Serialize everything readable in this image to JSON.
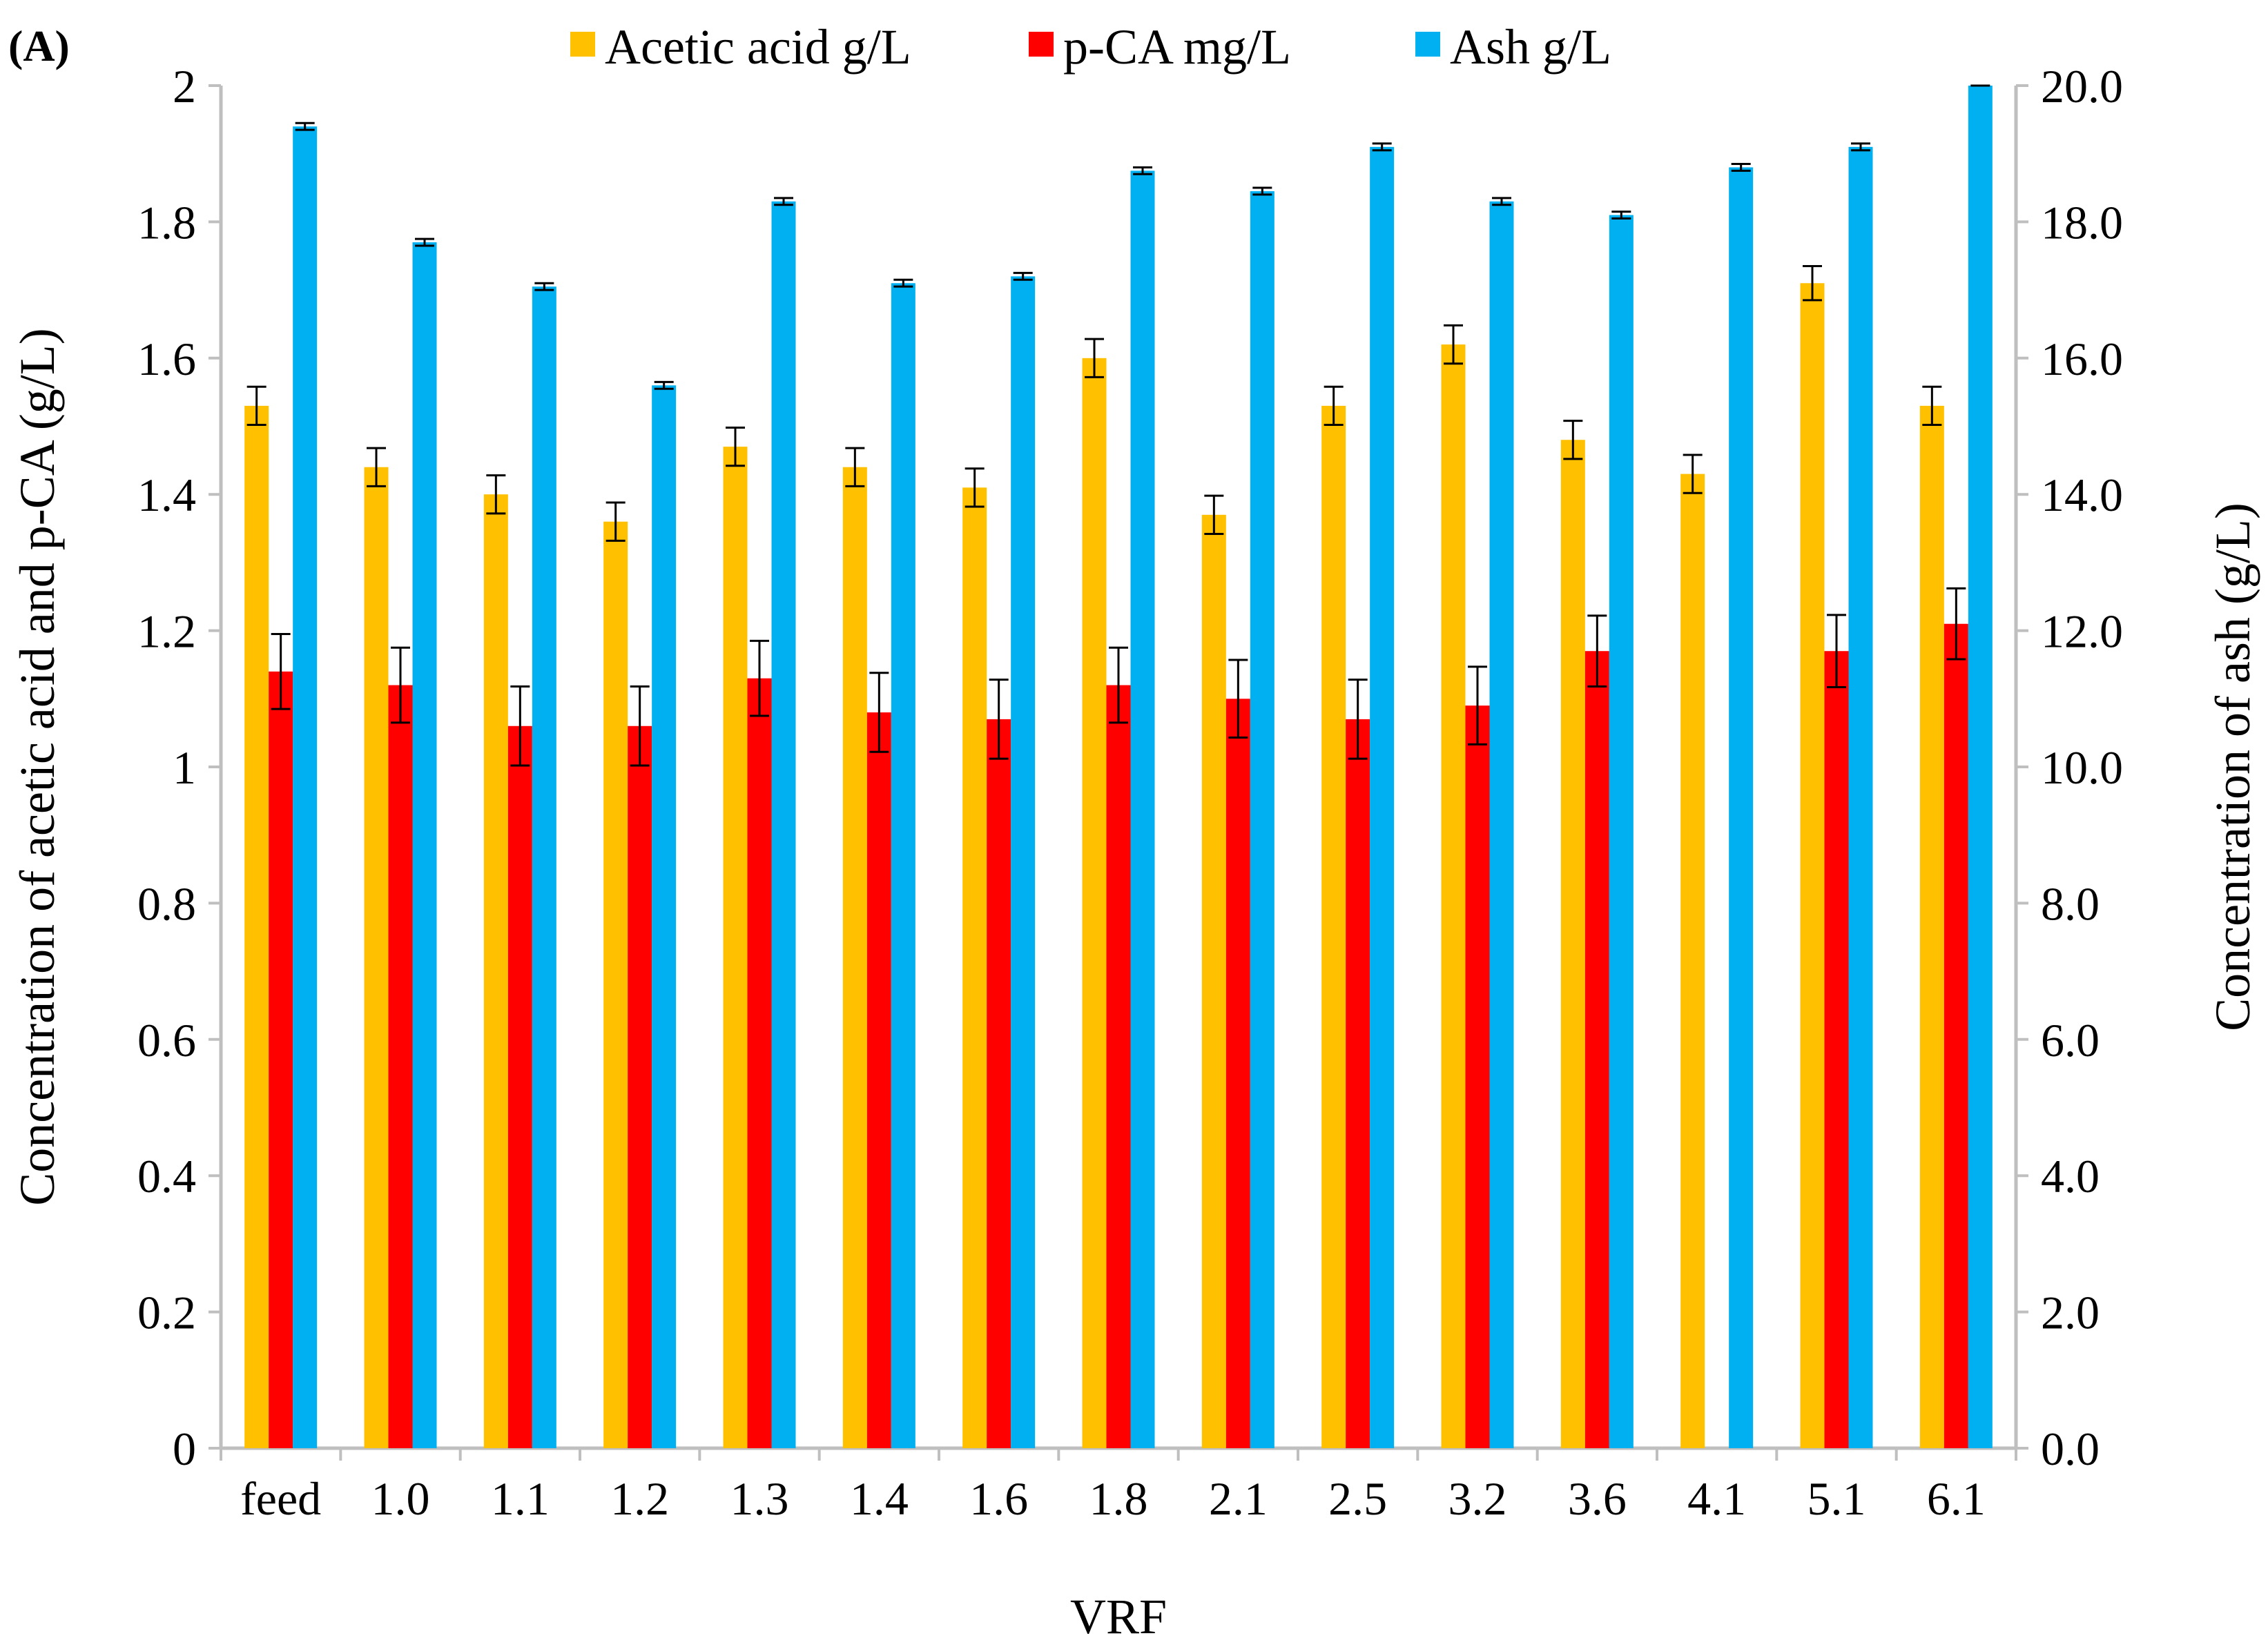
{
  "panel_label": "(A)",
  "chart_data": {
    "type": "bar",
    "xlabel": "VRF",
    "ylabel": "Concentration of acetic acid and p-CA (g/L)",
    "y2label": "Concentration of ash (g/L)",
    "categories": [
      "feed",
      "1.0",
      "1.1",
      "1.2",
      "1.3",
      "1.4",
      "1.6",
      "1.8",
      "2.1",
      "2.5",
      "3.2",
      "3.6",
      "4.1",
      "5.1",
      "6.1"
    ],
    "ylim": [
      0,
      2
    ],
    "y2lim": [
      0,
      20
    ],
    "y_ticks": [
      "0",
      "0.2",
      "0.4",
      "0.6",
      "0.8",
      "1",
      "1.2",
      "1.4",
      "1.6",
      "1.8",
      "2"
    ],
    "y2_ticks": [
      "0.0",
      "2.0",
      "4.0",
      "6.0",
      "8.0",
      "10.0",
      "12.0",
      "14.0",
      "16.0",
      "18.0",
      "20.0"
    ],
    "legend_position": "top",
    "grid": false,
    "series": [
      {
        "name": "Acetic acid g/L",
        "axis": "left",
        "color": "#FFC000",
        "values": [
          1.53,
          1.44,
          1.4,
          1.36,
          1.47,
          1.44,
          1.41,
          1.6,
          1.37,
          1.53,
          1.62,
          1.48,
          1.43,
          1.71,
          1.53
        ],
        "errors": [
          0.028,
          0.028,
          0.028,
          0.028,
          0.028,
          0.028,
          0.028,
          0.028,
          0.028,
          0.028,
          0.028,
          0.028,
          0.028,
          0.025,
          0.028
        ]
      },
      {
        "name": "p-CA mg/L",
        "axis": "left",
        "color": "#FF0000",
        "values": [
          1.14,
          1.12,
          1.06,
          1.06,
          1.13,
          1.08,
          1.07,
          1.12,
          1.1,
          1.07,
          1.09,
          1.17,
          null,
          1.17,
          1.21
        ],
        "errors": [
          0.055,
          0.055,
          0.058,
          0.058,
          0.055,
          0.058,
          0.058,
          0.055,
          0.057,
          0.058,
          0.057,
          0.052,
          null,
          0.053,
          0.052
        ]
      },
      {
        "name": "Ash g/L",
        "axis": "right",
        "color": "#00B0F0",
        "values": [
          19.4,
          17.7,
          17.05,
          15.6,
          18.3,
          17.1,
          17.2,
          18.75,
          18.45,
          19.1,
          18.3,
          18.1,
          18.8,
          19.1,
          20.0
        ],
        "errors": [
          0.05,
          0.05,
          0.05,
          0.05,
          0.05,
          0.05,
          0.05,
          0.05,
          0.05,
          0.05,
          0.05,
          0.05,
          0.05,
          0.05,
          0.0
        ]
      }
    ]
  }
}
